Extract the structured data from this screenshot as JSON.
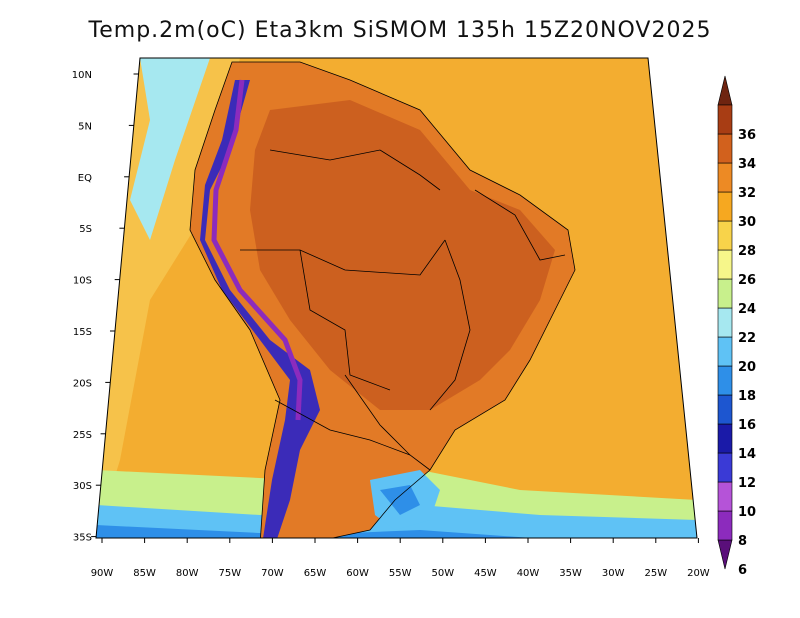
{
  "title": "Temp.2m(oC) Eta3km SiSMOM 135h 15Z20NOV2025",
  "map": {
    "lon_labels": [
      "90W",
      "85W",
      "80W",
      "75W",
      "70W",
      "65W",
      "60W",
      "55W",
      "50W",
      "45W",
      "40W",
      "35W",
      "30W",
      "25W",
      "20W"
    ],
    "lat_labels": [
      "10N",
      "5N",
      "EQ",
      "5S",
      "10S",
      "15S",
      "20S",
      "25S",
      "30S",
      "35S"
    ]
  },
  "colorbar": {
    "labels": [
      "6",
      "8",
      "10",
      "12",
      "14",
      "16",
      "18",
      "20",
      "22",
      "24",
      "26",
      "28",
      "30",
      "32",
      "34",
      "36"
    ],
    "colors": [
      "#5a0f7a",
      "#8c2bbd",
      "#b553d8",
      "#3a3ad6",
      "#1a1aa8",
      "#1d56d0",
      "#2e8fe8",
      "#5fc2f5",
      "#a6e8f0",
      "#c8f08c",
      "#f6f68a",
      "#f8d34a",
      "#f6a820",
      "#ed8a24",
      "#d2611d",
      "#a83d14",
      "#6e2410"
    ]
  },
  "regions": {
    "ocean_west": "#f3b030",
    "ocean_east": "#f4a430",
    "land_hot": "#e27a26",
    "land_core": "#c75a1e",
    "andes_cold": "#3b2bb8",
    "south_cool": "#7ad3ef",
    "south_cold": "#1f7be0"
  }
}
